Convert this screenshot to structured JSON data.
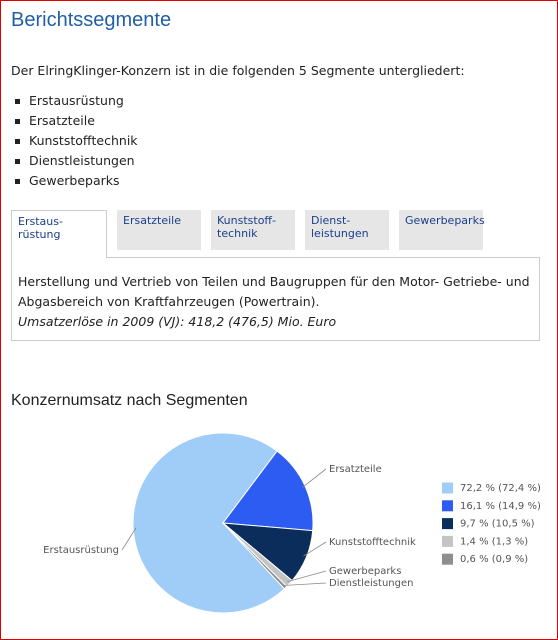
{
  "header": {
    "title": "Berichtssegmente"
  },
  "intro": "Der ElringKlinger-Konzern ist in die folgenden 5 Segmente untergliedert:",
  "list": [
    "Erstausrüstung",
    "Ersatzteile",
    "Kunststofftechnik",
    "Dienstleistungen",
    "Gewerbeparks"
  ],
  "tabs": [
    "Erstaus-\nrüstung",
    "Ersatzteile",
    "Kunststoff-\ntechnik",
    "Dienst-\nleistungen",
    "Gewerbeparks"
  ],
  "tab_content": {
    "text": "Herstellung und Vertrieb von Teilen und Baugruppen für den Motor- Getriebe- und Abgasbereich von Kraftfahrzeugen (Powertrain).",
    "note": "Umsatzerlöse in 2009 (VJ): 418,2 (476,5) Mio. Euro"
  },
  "chart_data": {
    "type": "pie",
    "title": "Konzernumsatz nach Segmenten",
    "categories": [
      "Erstausrüstung",
      "Ersatzteile",
      "Kunststofftechnik",
      "Gewerbeparks",
      "Dienstleistungen"
    ],
    "values": [
      72.2,
      16.1,
      9.7,
      1.4,
      0.6
    ],
    "value_labels": [
      "72,2 % (72,4 %)",
      "16,1 % (14,9 %)",
      "9,7 % (10,5 %)",
      "1,4 % (1,3 %)",
      "0,6 % (0,9 %)"
    ],
    "colors": [
      "#9fcdf8",
      "#2c5cf2",
      "#0b2d5c",
      "#c4c4c4",
      "#8e8e8e"
    ],
    "legend": "right"
  }
}
